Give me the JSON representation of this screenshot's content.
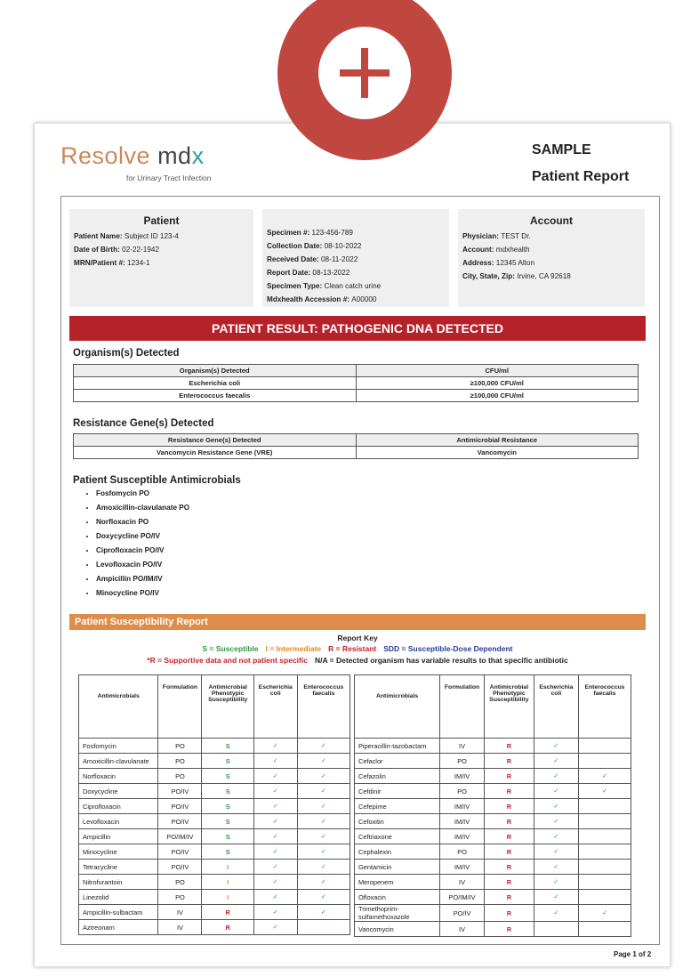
{
  "header": {
    "logo_word": "Resolve",
    "logo_brand": "md",
    "logo_brand_end": "x",
    "tagline": "for Urinary Tract Infection",
    "sample": "SAMPLE",
    "report_title": "Patient Report"
  },
  "patient": {
    "title": "Patient",
    "fields": [
      {
        "label": "Patient Name:",
        "value": "Subject ID 123-4"
      },
      {
        "label": "Date of Birth:",
        "value": "02-22-1942"
      },
      {
        "label": "MRN/Patient #:",
        "value": "1234-1"
      }
    ]
  },
  "specimen": {
    "fields": [
      {
        "label": "Specimen #:",
        "value": "123-456-789"
      },
      {
        "label": "Collection Date:",
        "value": "08-10-2022"
      },
      {
        "label": "Received Date:",
        "value": "08-11-2022"
      },
      {
        "label": "Report Date:",
        "value": "08-13-2022"
      },
      {
        "label": "Specimen Type:",
        "value": "Clean catch urine"
      },
      {
        "label": "Mdxhealth Accession #:",
        "value": "A00000"
      }
    ]
  },
  "account": {
    "title": "Account",
    "fields": [
      {
        "label": "Physician:",
        "value": "TEST Dr."
      },
      {
        "label": "Account:",
        "value": "mdxhealth"
      },
      {
        "label": "Address:",
        "value": "12345 Alton"
      },
      {
        "label": "City, State, Zip:",
        "value": "Irvine, CA 92618"
      }
    ]
  },
  "result_banner": "PATIENT RESULT: PATHOGENIC DNA DETECTED",
  "organisms": {
    "heading": "Organism(s) Detected",
    "columns": [
      "Organism(s) Detected",
      "CFU/ml"
    ],
    "rows": [
      [
        "Escherichia coli",
        "≥100,000 CFU/ml"
      ],
      [
        "Enterococcus faecalis",
        "≥100,000 CFU/ml"
      ]
    ]
  },
  "resistance": {
    "heading": "Resistance Gene(s) Detected",
    "columns": [
      "Resistance Gene(s) Detected",
      "Antimicrobial Resistance"
    ],
    "rows": [
      [
        "Vancomycin Resistance Gene (VRE)",
        "Vancomycin"
      ]
    ]
  },
  "susceptible": {
    "heading": "Patient Susceptible Antimicrobials",
    "items": [
      "Fosfomycin PO",
      "Amoxicillin-clavulanate PO",
      "Norfloxacin PO",
      "Doxycycline PO/IV",
      "Ciprofloxacin PO/IV",
      "Levofloxacin PO/IV",
      "Ampicillin PO/IM/IV",
      "Minocycline PO/IV"
    ]
  },
  "susceptibility_report": {
    "heading": "Patient Susceptibility Report",
    "key_title": "Report Key",
    "key_line1": [
      {
        "text": "S = Susceptible",
        "color": "#2f9a3c"
      },
      {
        "text": "I = Intermediate",
        "color": "#e08a1e"
      },
      {
        "text": "R = Resistant",
        "color": "#c8202a"
      },
      {
        "text": "SDD = Susceptible-Dose Dependent",
        "color": "#2a3a9a"
      }
    ],
    "key_line2": [
      {
        "text": "*R = Supportive data and not patient specific",
        "color": "#c8202a"
      },
      {
        "text": "N/A = Detected organism has variable results to that specific antibiotic",
        "color": "#222222"
      }
    ],
    "result_colors": {
      "S": "#2f9a3c",
      "I": "#e08a1e",
      "R": "#c8202a"
    },
    "tables": [
      {
        "columns": [
          "Antimicrobials",
          "Formulation",
          "Antimicrobial Phenotypic Susceptibility",
          "Escherichia coli",
          "Enterococcus faecalis"
        ],
        "rows": [
          [
            "Fosfomycin",
            "PO",
            "S",
            "✓",
            "✓"
          ],
          [
            "Amoxicillin-clavulanate",
            "PO",
            "S",
            "✓",
            "✓"
          ],
          [
            "Norfloxacin",
            "PO",
            "S",
            "✓",
            "✓"
          ],
          [
            "Doxycycline",
            "PO/IV",
            "S",
            "✓",
            "✓"
          ],
          [
            "Ciprofloxacin",
            "PO/IV",
            "S",
            "✓",
            "✓"
          ],
          [
            "Levofloxacin",
            "PO/IV",
            "S",
            "✓",
            "✓"
          ],
          [
            "Ampicillin",
            "PO/IM/IV",
            "S",
            "✓",
            "✓"
          ],
          [
            "Minocycline",
            "PO/IV",
            "S",
            "✓",
            "✓"
          ],
          [
            "Tetracycline",
            "PO/IV",
            "I",
            "✓",
            "✓"
          ],
          [
            "Nitrofurantoin",
            "PO",
            "I",
            "✓",
            "✓"
          ],
          [
            "Linezolid",
            "PO",
            "I",
            "✓",
            "✓"
          ],
          [
            "Ampicillin-sulbactam",
            "IV",
            "R",
            "✓",
            "✓"
          ],
          [
            "Aztreonam",
            "IV",
            "R",
            "✓",
            null
          ]
        ]
      },
      {
        "columns": [
          "Antimicrobials",
          "Formulation",
          "Antimicrobial Phenotypic Susceptibility",
          "Escherichia coli",
          "Enterococcus faecalis"
        ],
        "rows": [
          [
            "Piperacillin-tazobactam",
            "IV",
            "R",
            "✓",
            null
          ],
          [
            "Cefaclor",
            "PO",
            "R",
            "✓",
            null
          ],
          [
            "Cefazolin",
            "IM/IV",
            "R",
            "✓",
            "✓"
          ],
          [
            "Cefdinir",
            "PO",
            "R",
            "✓",
            "✓"
          ],
          [
            "Cefepime",
            "IM/IV",
            "R",
            "✓",
            null
          ],
          [
            "Cefoxitin",
            "IM/IV",
            "R",
            "✓",
            null
          ],
          [
            "Ceftriaxone",
            "IM/IV",
            "R",
            "✓",
            null
          ],
          [
            "Cephalexin",
            "PO",
            "R",
            "✓",
            null
          ],
          [
            "Gentamicin",
            "IM/IV",
            "R",
            "✓",
            null
          ],
          [
            "Meropenem",
            "IV",
            "R",
            "✓",
            null
          ],
          [
            "Ofloxacin",
            "PO/IM/IV",
            "R",
            "✓",
            null
          ],
          [
            "Trimethoprim-sulfamethoxazole",
            "PO/IV",
            "R",
            "✓",
            "✓"
          ],
          [
            "Vancomycin",
            "IV",
            "R",
            null,
            null
          ]
        ]
      }
    ]
  },
  "footer": "Page 1 of 2"
}
